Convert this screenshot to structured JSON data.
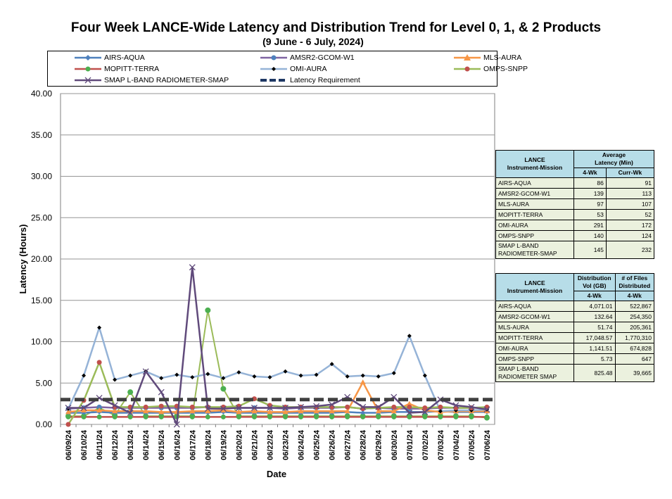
{
  "title": "Four Week LANCE-Wide Latency and Distribution Trend for Level 0, 1, & 2 Products",
  "subtitle": "(9  June   - 6  July,  2024)",
  "chart_data": {
    "type": "line",
    "xlabel": "Date",
    "ylabel": "Latency (Hours)",
    "ylim": [
      0,
      40
    ],
    "yticks": [
      "0.00",
      "5.00",
      "10.00",
      "15.00",
      "20.00",
      "25.00",
      "30.00",
      "35.00",
      "40.00"
    ],
    "grid": true,
    "legend_position": "top",
    "categories": [
      "06/09/24",
      "06/10/24",
      "06/11/24",
      "06/12/24",
      "06/13/24",
      "06/14/24",
      "06/15/24",
      "06/16/24",
      "06/17/24",
      "06/18/24",
      "06/19/24",
      "06/20/24",
      "06/21/24",
      "06/22/24",
      "06/23/24",
      "06/24/24",
      "06/25/24",
      "06/26/24",
      "06/27/24",
      "06/28/24",
      "06/29/24",
      "06/30/24",
      "07/01/24",
      "07/02/24",
      "07/03/24",
      "07/04/24",
      "07/05/24",
      "07/06/24"
    ],
    "series": [
      {
        "name": "AIRS-AQUA",
        "color": "#4f81bd",
        "marker": "diamond",
        "values": [
          1.4,
          1.4,
          1.5,
          1.4,
          1.4,
          1.4,
          1.4,
          1.4,
          1.4,
          1.4,
          1.5,
          1.4,
          1.4,
          1.4,
          1.4,
          1.4,
          1.4,
          1.4,
          1.5,
          1.4,
          1.4,
          1.5,
          1.5,
          1.5,
          1.6,
          1.5,
          1.5,
          1.5
        ]
      },
      {
        "name": "AMSR2-GCOM-W1",
        "color": "#8064a2",
        "marker": "circle",
        "values": [
          1.9,
          2.0,
          2.1,
          2.0,
          2.0,
          2.0,
          2.0,
          2.0,
          2.0,
          2.1,
          2.0,
          2.0,
          2.0,
          2.0,
          1.9,
          2.0,
          2.0,
          2.0,
          2.1,
          1.9,
          2.0,
          1.9,
          1.9,
          1.9,
          2.0,
          2.0,
          2.0,
          2.0
        ]
      },
      {
        "name": "MLS-AURA",
        "color": "#f79646",
        "marker": "triangle",
        "values": [
          1.5,
          1.7,
          1.7,
          1.6,
          1.6,
          1.6,
          1.5,
          1.5,
          1.6,
          1.6,
          1.7,
          1.5,
          1.6,
          1.5,
          1.5,
          1.6,
          1.6,
          1.6,
          1.6,
          5.1,
          1.6,
          1.6,
          2.5,
          1.7,
          1.5,
          1.6,
          1.6,
          1.6
        ]
      },
      {
        "name": "MOPITT-TERRA",
        "color": "#c0504d",
        "marker": "circle",
        "values": [
          0.9,
          0.9,
          0.9,
          0.9,
          0.9,
          0.9,
          0.9,
          0.9,
          0.9,
          0.9,
          0.9,
          0.9,
          0.9,
          0.9,
          0.9,
          0.9,
          0.9,
          0.9,
          0.9,
          0.9,
          0.9,
          0.9,
          0.9,
          0.9,
          0.9,
          0.9,
          0.9,
          0.9
        ]
      },
      {
        "name": "OMI-AURA",
        "color": "#95b3d7",
        "marker": "diamond-black",
        "values": [
          1.9,
          5.9,
          11.7,
          5.4,
          5.9,
          6.4,
          5.6,
          6.0,
          5.7,
          6.1,
          5.6,
          6.3,
          5.8,
          5.7,
          6.4,
          5.9,
          6.0,
          7.3,
          5.8,
          5.9,
          5.8,
          6.2,
          10.7,
          5.9,
          1.6,
          1.7,
          1.7,
          1.8
        ]
      },
      {
        "name": "OMPS-SNPP",
        "color": "#9bbb59",
        "marker": "circle-red",
        "values": [
          0.0,
          2.9,
          7.5,
          2.1,
          2.1,
          2.1,
          2.2,
          2.2,
          2.1,
          2.1,
          2.1,
          2.2,
          3.1,
          2.3,
          2.1,
          2.1,
          2.1,
          2.1,
          2.1,
          1.9,
          2.0,
          2.1,
          2.1,
          2.0,
          2.1,
          2.0,
          2.0,
          2.1
        ]
      },
      {
        "name": "SMAP L-BAND RADIOMETER-SMAP",
        "color": "#604a7b",
        "marker": "x",
        "values": [
          2.0,
          2.0,
          3.2,
          2.3,
          1.4,
          6.4,
          3.9,
          0.0,
          19.0,
          1.9,
          1.9,
          2.0,
          2.0,
          2.0,
          2.0,
          2.1,
          2.2,
          2.4,
          3.3,
          2.1,
          2.1,
          3.3,
          1.4,
          1.5,
          3.0,
          2.3,
          2.1,
          1.8
        ]
      },
      {
        "name": "Latency Requirement",
        "color": "#1f3864",
        "marker": "dashed",
        "values": [
          3,
          3,
          3,
          3,
          3,
          3,
          3,
          3,
          3,
          3,
          3,
          3,
          3,
          3,
          3,
          3,
          3,
          3,
          3,
          3,
          3,
          3,
          3,
          3,
          3,
          3,
          3,
          3
        ]
      }
    ],
    "extra_points": [
      {
        "series": "OMI-AURA-green",
        "label": "green circle markers (OMPS-SNPP style)",
        "values": [
          1.0,
          1.0,
          2.0,
          1.1,
          3.9,
          1.0,
          1.0,
          1.0,
          1.0,
          13.8,
          4.3,
          1.0,
          1.0,
          1.0,
          1.0,
          1.0,
          1.0,
          1.0,
          1.0,
          1.0,
          1.0,
          1.0,
          1.0,
          1.0,
          1.0,
          1.0,
          1.0,
          0.8
        ]
      }
    ]
  },
  "latency_table": {
    "header_col1": "LANCE\nInstrument-Mission",
    "header_col2": "Average\nLatency (Min)",
    "sub_4wk": "4-Wk",
    "sub_curr": "Curr-Wk",
    "rows": [
      {
        "name": "AIRS-AQUA",
        "wk4": "86",
        "curr": "91"
      },
      {
        "name": "AMSR2-GCOM-W1",
        "wk4": "139",
        "curr": "113"
      },
      {
        "name": "MLS-AURA",
        "wk4": "97",
        "curr": "107"
      },
      {
        "name": "MOPITT-TERRA",
        "wk4": "53",
        "curr": "52"
      },
      {
        "name": "OMI-AURA",
        "wk4": "291",
        "curr": "172"
      },
      {
        "name": "OMPS-SNPP",
        "wk4": "140",
        "curr": "124"
      },
      {
        "name": "SMAP L-BAND RADIOMETER-SMAP",
        "wk4": "145",
        "curr": "232"
      }
    ]
  },
  "distribution_table": {
    "header_col1": "LANCE\nInstrument-Mission",
    "header_col2": "Distribution\nVol (GB)",
    "header_col3": "# of Files\nDistributed",
    "sub_col2": "4-Wk",
    "sub_col3": "4-Wk",
    "rows": [
      {
        "name": "AIRS-AQUA",
        "vol": "4,071.01",
        "files": "522,867"
      },
      {
        "name": "AMSR2-GCOM-W1",
        "vol": "132.64",
        "files": "254,350"
      },
      {
        "name": "MLS-AURA",
        "vol": "51.74",
        "files": "205,361"
      },
      {
        "name": "MOPITT-TERRA",
        "vol": "17,048.57",
        "files": "1,770,310"
      },
      {
        "name": "OMI-AURA",
        "vol": "1,141.51",
        "files": "674,828"
      },
      {
        "name": "OMPS-SNPP",
        "vol": "5.73",
        "files": "647"
      },
      {
        "name": "SMAP L-BAND RADIOMETER SMAP",
        "vol": "825.48",
        "files": "39,665"
      }
    ]
  }
}
